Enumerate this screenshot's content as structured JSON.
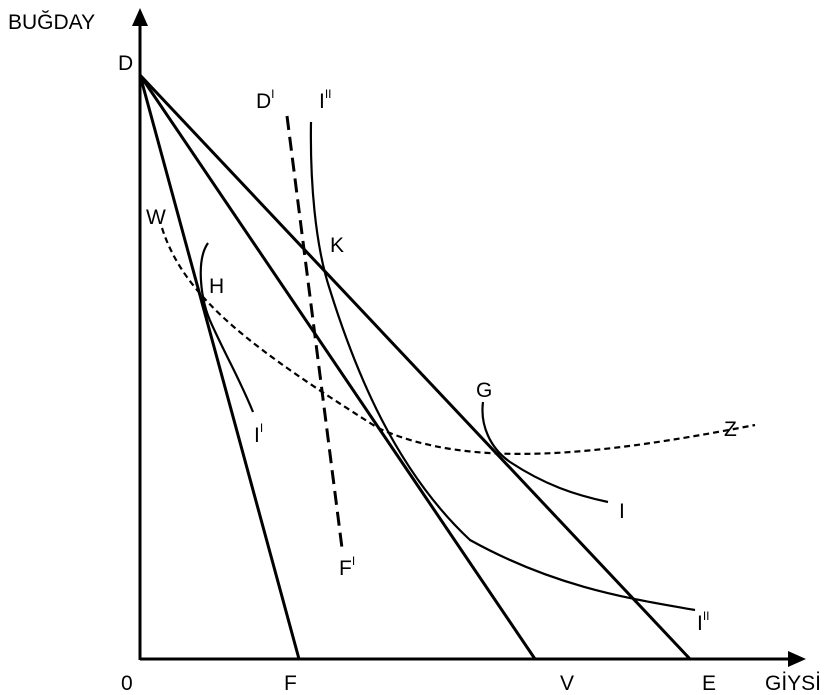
{
  "axes": {
    "y_label": "BUĞDAY",
    "x_label": "GİYSİ",
    "origin_label": "0"
  },
  "points": {
    "D": "D",
    "F": "F",
    "V": "V",
    "E": "E",
    "H": "H",
    "K": "K",
    "G": "G",
    "W": "W",
    "Z": "Z"
  },
  "curves": {
    "I": "I",
    "I1_base": "I",
    "I1_sup": "I",
    "I2_base": "I",
    "I2_sup": "II",
    "D1_base": "D",
    "D1_sup": "I",
    "F1_base": "F",
    "F1_sup": "I"
  }
}
